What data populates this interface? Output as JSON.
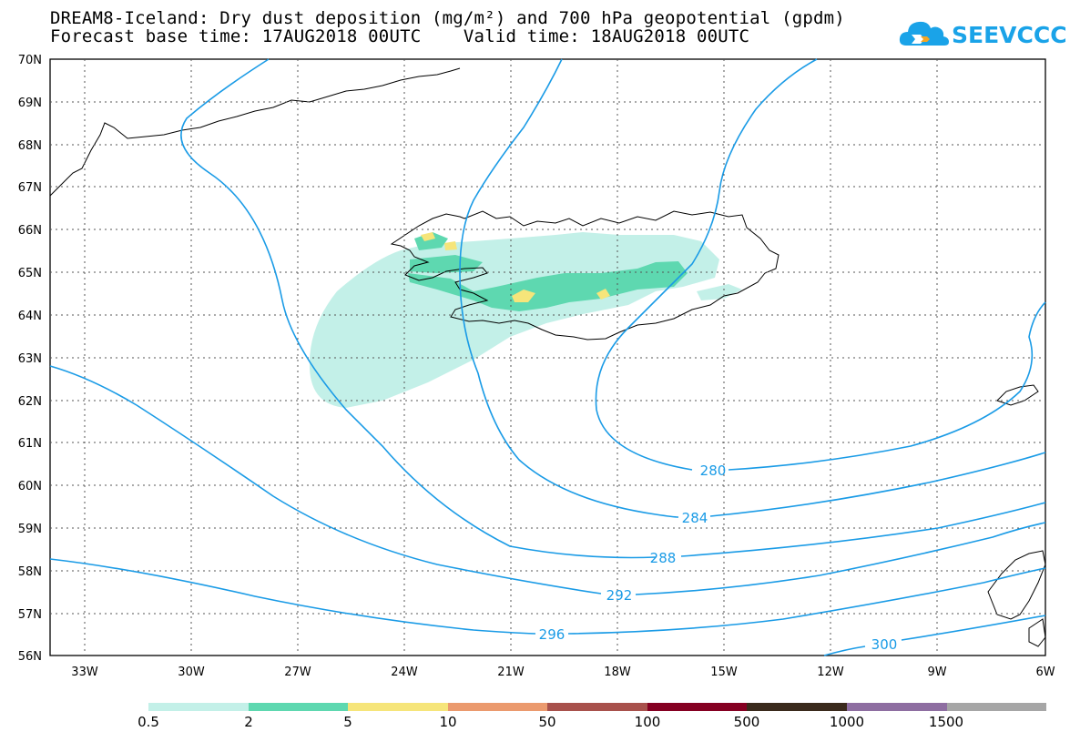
{
  "title_line1": "DREAM8-Iceland: Dry dust deposition (mg/m²) and 700 hPa geopotential (gpdm)",
  "title_line2": "Forecast base time: 17AUG2018 00UTC    Valid time: 18AUG2018 00UTC",
  "logo_text": "SEEVCCC",
  "lat_labels": [
    "70N",
    "69N",
    "68N",
    "67N",
    "66N",
    "65N",
    "64N",
    "63N",
    "62N",
    "61N",
    "60N",
    "59N",
    "58N",
    "57N",
    "56N"
  ],
  "lon_labels": [
    "33W",
    "30W",
    "27W",
    "24W",
    "21W",
    "18W",
    "15W",
    "12W",
    "9W",
    "6W"
  ],
  "contour_labels": [
    "280",
    "284",
    "288",
    "292",
    "296",
    "300"
  ],
  "legend": {
    "labels": [
      "0.5",
      "2",
      "5",
      "10",
      "50",
      "100",
      "500",
      "1000",
      "1500"
    ],
    "colors": [
      "#c3f0e8",
      "#5ed8b0",
      "#f6e57a",
      "#eb9a6e",
      "#a8514c",
      "#850022",
      "#3a2a1c",
      "#8e6ea1",
      "#a6a6a6"
    ]
  },
  "contour_color": "#1a9be6"
}
